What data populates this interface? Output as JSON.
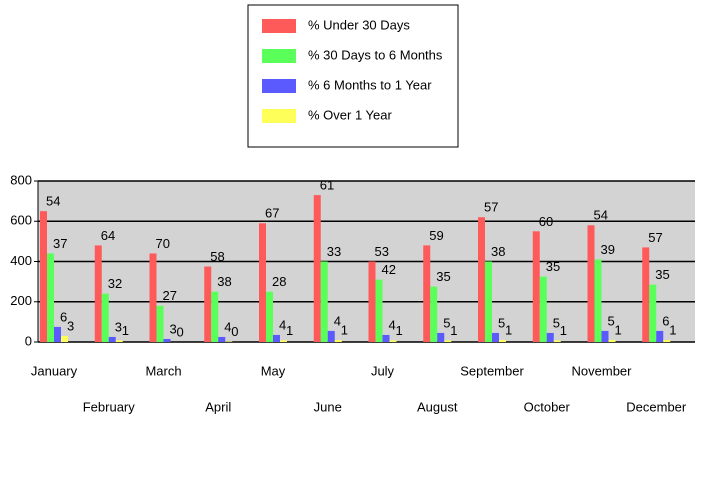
{
  "chart_data": {
    "type": "bar",
    "categories": [
      "January",
      "February",
      "March",
      "April",
      "May",
      "June",
      "July",
      "August",
      "September",
      "October",
      "November",
      "December"
    ],
    "series": [
      {
        "name": "% Under 30 Days",
        "color": "#ff5a5a",
        "values": [
          650,
          480,
          440,
          375,
          590,
          730,
          400,
          480,
          620,
          550,
          580,
          470
        ],
        "percents": [
          54,
          64,
          70,
          58,
          67,
          61,
          53,
          59,
          57,
          60,
          54,
          57
        ]
      },
      {
        "name": "% 30 Days to 6 Months",
        "color": "#5aff5a",
        "values": [
          440,
          240,
          180,
          250,
          250,
          400,
          310,
          275,
          400,
          325,
          410,
          285
        ],
        "percents": [
          37,
          32,
          27,
          38,
          28,
          33,
          42,
          35,
          38,
          35,
          39,
          35
        ]
      },
      {
        "name": "% 6 Months to 1 Year",
        "color": "#5a5aff",
        "values": [
          75,
          25,
          15,
          25,
          35,
          55,
          35,
          45,
          45,
          45,
          55,
          55
        ],
        "percents": [
          6,
          3,
          3,
          4,
          4,
          4,
          4,
          5,
          5,
          5,
          5,
          6
        ]
      },
      {
        "name": "% Over 1 Year",
        "color": "#ffff5a",
        "values": [
          30,
          8,
          0,
          3,
          8,
          10,
          8,
          8,
          10,
          8,
          10,
          10
        ],
        "percents": [
          3,
          1,
          0,
          0,
          1,
          1,
          1,
          1,
          1,
          1,
          1,
          1
        ]
      }
    ],
    "ylim": [
      0,
      800
    ],
    "yticks": [
      0,
      200,
      400,
      600,
      800
    ],
    "grid": true,
    "legend": "top"
  }
}
